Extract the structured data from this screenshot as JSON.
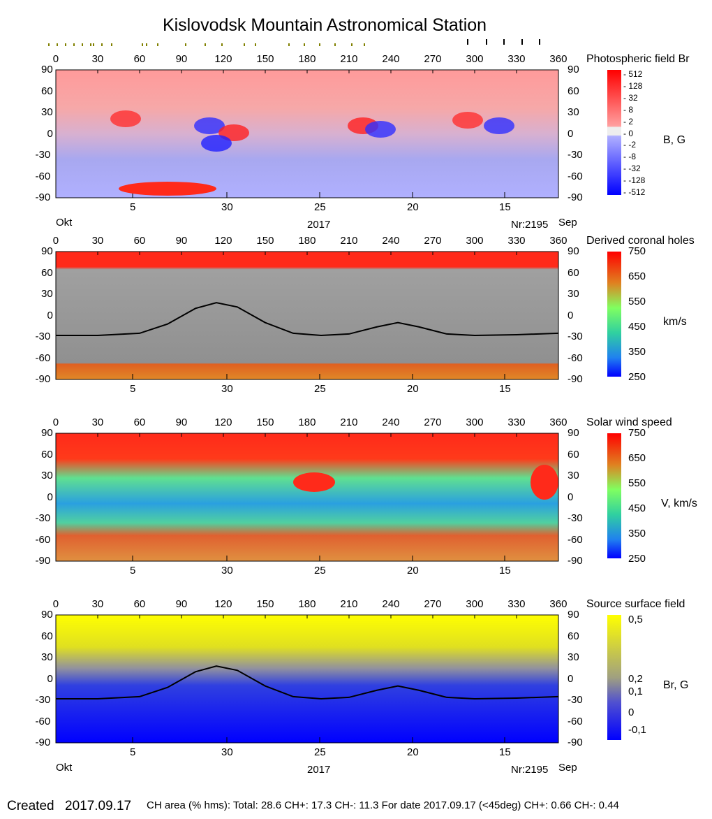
{
  "title": "Kislovodsk Mountain Astronomical Station",
  "footer": {
    "created_label": "Created",
    "created_date": "2017.09.17",
    "stats": "CH area (% hms): Total: 28.6 CH+: 17.3   CH-: 11.3    For date 2017.09.17 (<45deg) CH+: 0.66    CH-: 0.44"
  },
  "axes": {
    "lon_ticks": [
      "0",
      "30",
      "60",
      "90",
      "120",
      "150",
      "180",
      "210",
      "240",
      "270",
      "300",
      "330",
      "360"
    ],
    "lat_ticks": [
      "90",
      "60",
      "30",
      "0",
      "-30",
      "-60",
      "-90"
    ],
    "date_ticks": [
      "5",
      "30",
      "25",
      "20",
      "15"
    ],
    "month_left": "Okt",
    "month_right": "Sep",
    "year": "2017",
    "rotation": "Nr:2195"
  },
  "colors": {
    "red": "#ff2a1a",
    "blue": "#1a1aff",
    "gray_light": "#c0c0c0",
    "gray_dark": "#808080",
    "yellow": "#ffff00"
  },
  "chart_data": [
    {
      "type": "heatmap",
      "title": "Photospheric field Br",
      "unit": "B, G",
      "xlim": [
        0,
        360
      ],
      "ylim": [
        -90,
        90
      ],
      "colorbar_ticks": [
        "512",
        "128",
        "32",
        "8",
        "2",
        "0",
        "-2",
        "-8",
        "-32",
        "-128",
        "-512"
      ]
    },
    {
      "type": "heatmap",
      "title": "Derived coronal holes",
      "unit": "km/s",
      "xlim": [
        0,
        360
      ],
      "ylim": [
        -90,
        90
      ],
      "colorbar_ticks": [
        "750",
        "650",
        "550",
        "450",
        "350",
        "250"
      ],
      "neutral_line": {
        "lon": [
          0,
          30,
          60,
          80,
          100,
          115,
          130,
          150,
          170,
          190,
          210,
          230,
          245,
          260,
          280,
          300,
          330,
          360
        ],
        "lat": [
          -28,
          -28,
          -25,
          -12,
          10,
          18,
          12,
          -10,
          -25,
          -28,
          -26,
          -16,
          -10,
          -16,
          -26,
          -28,
          -27,
          -25
        ]
      }
    },
    {
      "type": "heatmap",
      "title": "Solar wind speed",
      "unit": "V, km/s",
      "xlim": [
        0,
        360
      ],
      "ylim": [
        -90,
        90
      ],
      "colorbar_ticks": [
        "750",
        "650",
        "550",
        "450",
        "350",
        "250"
      ]
    },
    {
      "type": "heatmap",
      "title": "Source surface field",
      "unit": "Br, G",
      "xlim": [
        0,
        360
      ],
      "ylim": [
        -90,
        90
      ],
      "colorbar_ticks": [
        "0,5",
        "0,2",
        "0,1",
        "0",
        "-0,1"
      ],
      "neutral_line": {
        "lon": [
          0,
          30,
          60,
          80,
          100,
          115,
          130,
          150,
          170,
          190,
          210,
          230,
          245,
          260,
          280,
          300,
          330,
          360
        ],
        "lat": [
          -28,
          -28,
          -25,
          -12,
          10,
          18,
          12,
          -10,
          -25,
          -28,
          -26,
          -16,
          -10,
          -16,
          -26,
          -28,
          -27,
          -25
        ]
      }
    }
  ]
}
